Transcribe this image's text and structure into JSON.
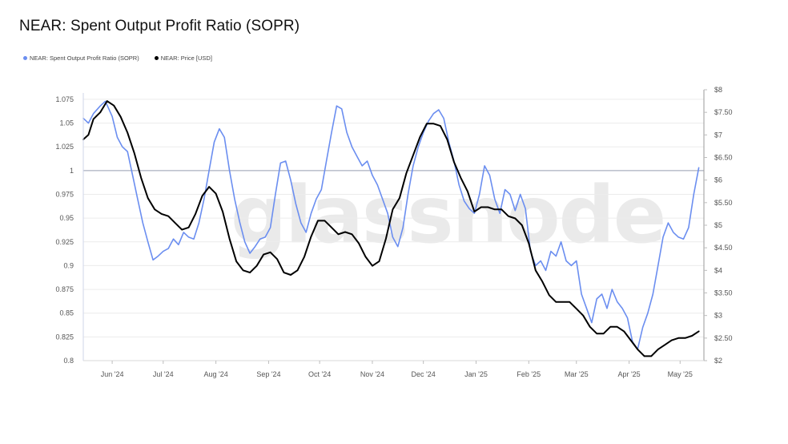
{
  "title": "NEAR: Spent Output Profit Ratio (SOPR)",
  "watermark": "glassnode",
  "legend": [
    {
      "label": "NEAR: Spent Output Profit Ratio (SOPR)",
      "color": "#6b8ef0"
    },
    {
      "label": "NEAR: Price [USD]",
      "color": "#000000"
    }
  ],
  "chart_data": {
    "type": "line",
    "title": "NEAR: Spent Output Profit Ratio (SOPR)",
    "x_tick_labels": [
      "Jun '24",
      "Jul '24",
      "Aug '24",
      "Sep '24",
      "Oct '24",
      "Nov '24",
      "Dec '24",
      "Jan '25",
      "Feb '25",
      "Mar '25",
      "Apr '25",
      "May '25"
    ],
    "x_range": [
      "2024-05-15",
      "2025-05-15"
    ],
    "left_axis": {
      "ticks": [
        "0.8",
        "0.825",
        "0.85",
        "0.875",
        "0.9",
        "0.925",
        "0.95",
        "0.975",
        "1",
        "1.025",
        "1.05",
        "1.075"
      ],
      "ylim": [
        0.8,
        1.08
      ],
      "reference_line": 1
    },
    "right_axis": {
      "ticks": [
        "$2",
        "$2.50",
        "$3",
        "$3.50",
        "$4",
        "$4.50",
        "$5",
        "$5.50",
        "$6",
        "$6.50",
        "$7",
        "$7.50",
        "$8"
      ],
      "ylim": [
        2,
        8
      ]
    },
    "grid": true,
    "legend_position": "top-left",
    "series": [
      {
        "name": "NEAR: Spent Output Profit Ratio (SOPR)",
        "axis": "left",
        "color": "#6b8ef0",
        "points": [
          [
            "2024-05-15",
            1.055
          ],
          [
            "2024-05-18",
            1.05
          ],
          [
            "2024-05-21",
            1.06
          ],
          [
            "2024-05-25",
            1.068
          ],
          [
            "2024-05-28",
            1.073
          ],
          [
            "2024-06-01",
            1.057
          ],
          [
            "2024-06-04",
            1.035
          ],
          [
            "2024-06-07",
            1.025
          ],
          [
            "2024-06-10",
            1.02
          ],
          [
            "2024-06-13",
            0.995
          ],
          [
            "2024-06-16",
            0.97
          ],
          [
            "2024-06-19",
            0.945
          ],
          [
            "2024-06-22",
            0.925
          ],
          [
            "2024-06-25",
            0.906
          ],
          [
            "2024-06-28",
            0.91
          ],
          [
            "2024-07-01",
            0.915
          ],
          [
            "2024-07-04",
            0.918
          ],
          [
            "2024-07-07",
            0.928
          ],
          [
            "2024-07-10",
            0.922
          ],
          [
            "2024-07-13",
            0.935
          ],
          [
            "2024-07-16",
            0.93
          ],
          [
            "2024-07-19",
            0.928
          ],
          [
            "2024-07-22",
            0.945
          ],
          [
            "2024-07-25",
            0.97
          ],
          [
            "2024-07-28",
            1.0
          ],
          [
            "2024-07-31",
            1.03
          ],
          [
            "2024-08-03",
            1.044
          ],
          [
            "2024-08-06",
            1.035
          ],
          [
            "2024-08-09",
            1.0
          ],
          [
            "2024-08-12",
            0.97
          ],
          [
            "2024-08-15",
            0.946
          ],
          [
            "2024-08-18",
            0.925
          ],
          [
            "2024-08-21",
            0.913
          ],
          [
            "2024-08-24",
            0.92
          ],
          [
            "2024-08-27",
            0.928
          ],
          [
            "2024-08-30",
            0.93
          ],
          [
            "2024-09-02",
            0.94
          ],
          [
            "2024-09-05",
            0.975
          ],
          [
            "2024-09-08",
            1.008
          ],
          [
            "2024-09-11",
            1.01
          ],
          [
            "2024-09-14",
            0.99
          ],
          [
            "2024-09-17",
            0.965
          ],
          [
            "2024-09-20",
            0.945
          ],
          [
            "2024-09-23",
            0.935
          ],
          [
            "2024-09-26",
            0.955
          ],
          [
            "2024-09-29",
            0.97
          ],
          [
            "2024-10-02",
            0.98
          ],
          [
            "2024-10-05",
            1.01
          ],
          [
            "2024-10-08",
            1.04
          ],
          [
            "2024-10-11",
            1.068
          ],
          [
            "2024-10-14",
            1.065
          ],
          [
            "2024-10-17",
            1.04
          ],
          [
            "2024-10-20",
            1.025
          ],
          [
            "2024-10-23",
            1.015
          ],
          [
            "2024-10-26",
            1.005
          ],
          [
            "2024-10-29",
            1.01
          ],
          [
            "2024-11-01",
            0.995
          ],
          [
            "2024-11-04",
            0.985
          ],
          [
            "2024-11-07",
            0.97
          ],
          [
            "2024-11-10",
            0.955
          ],
          [
            "2024-11-13",
            0.93
          ],
          [
            "2024-11-16",
            0.92
          ],
          [
            "2024-11-19",
            0.94
          ],
          [
            "2024-11-22",
            0.975
          ],
          [
            "2024-11-25",
            1.005
          ],
          [
            "2024-11-28",
            1.025
          ],
          [
            "2024-12-01",
            1.04
          ],
          [
            "2024-12-04",
            1.052
          ],
          [
            "2024-12-07",
            1.06
          ],
          [
            "2024-12-10",
            1.064
          ],
          [
            "2024-12-13",
            1.055
          ],
          [
            "2024-12-16",
            1.03
          ],
          [
            "2024-12-19",
            1.01
          ],
          [
            "2024-12-22",
            0.985
          ],
          [
            "2024-12-25",
            0.968
          ],
          [
            "2024-12-28",
            0.96
          ],
          [
            "2024-12-31",
            0.955
          ],
          [
            "2025-01-03",
            0.975
          ],
          [
            "2025-01-06",
            1.005
          ],
          [
            "2025-01-09",
            0.995
          ],
          [
            "2025-01-12",
            0.97
          ],
          [
            "2025-01-15",
            0.955
          ],
          [
            "2025-01-18",
            0.98
          ],
          [
            "2025-01-21",
            0.975
          ],
          [
            "2025-01-24",
            0.958
          ],
          [
            "2025-01-27",
            0.975
          ],
          [
            "2025-01-30",
            0.96
          ],
          [
            "2025-02-02",
            0.915
          ],
          [
            "2025-02-05",
            0.9
          ],
          [
            "2025-02-08",
            0.905
          ],
          [
            "2025-02-11",
            0.895
          ],
          [
            "2025-02-14",
            0.915
          ],
          [
            "2025-02-17",
            0.91
          ],
          [
            "2025-02-20",
            0.925
          ],
          [
            "2025-02-23",
            0.905
          ],
          [
            "2025-02-26",
            0.9
          ],
          [
            "2025-03-01",
            0.905
          ],
          [
            "2025-03-04",
            0.87
          ],
          [
            "2025-03-07",
            0.855
          ],
          [
            "2025-03-10",
            0.84
          ],
          [
            "2025-03-13",
            0.865
          ],
          [
            "2025-03-16",
            0.87
          ],
          [
            "2025-03-19",
            0.855
          ],
          [
            "2025-03-22",
            0.875
          ],
          [
            "2025-03-25",
            0.862
          ],
          [
            "2025-03-28",
            0.855
          ],
          [
            "2025-03-31",
            0.845
          ],
          [
            "2025-04-03",
            0.82
          ],
          [
            "2025-04-06",
            0.812
          ],
          [
            "2025-04-09",
            0.835
          ],
          [
            "2025-04-12",
            0.85
          ],
          [
            "2025-04-15",
            0.87
          ],
          [
            "2025-04-18",
            0.9
          ],
          [
            "2025-04-21",
            0.93
          ],
          [
            "2025-04-24",
            0.945
          ],
          [
            "2025-04-27",
            0.935
          ],
          [
            "2025-04-30",
            0.93
          ],
          [
            "2025-05-03",
            0.928
          ],
          [
            "2025-05-06",
            0.94
          ],
          [
            "2025-05-09",
            0.975
          ],
          [
            "2025-05-12",
            1.003
          ]
        ]
      },
      {
        "name": "NEAR: Price [USD]",
        "axis": "right",
        "color": "#000000",
        "points": [
          [
            "2024-05-15",
            6.9
          ],
          [
            "2024-05-18",
            7.0
          ],
          [
            "2024-05-21",
            7.35
          ],
          [
            "2024-05-25",
            7.5
          ],
          [
            "2024-05-29",
            7.75
          ],
          [
            "2024-06-02",
            7.65
          ],
          [
            "2024-06-06",
            7.4
          ],
          [
            "2024-06-10",
            7.05
          ],
          [
            "2024-06-14",
            6.6
          ],
          [
            "2024-06-18",
            6.05
          ],
          [
            "2024-06-22",
            5.6
          ],
          [
            "2024-06-26",
            5.35
          ],
          [
            "2024-06-30",
            5.25
          ],
          [
            "2024-07-04",
            5.2
          ],
          [
            "2024-07-08",
            5.05
          ],
          [
            "2024-07-12",
            4.9
          ],
          [
            "2024-07-16",
            4.95
          ],
          [
            "2024-07-20",
            5.25
          ],
          [
            "2024-07-24",
            5.65
          ],
          [
            "2024-07-28",
            5.85
          ],
          [
            "2024-08-01",
            5.7
          ],
          [
            "2024-08-05",
            5.3
          ],
          [
            "2024-08-09",
            4.7
          ],
          [
            "2024-08-13",
            4.2
          ],
          [
            "2024-08-17",
            4.0
          ],
          [
            "2024-08-21",
            3.95
          ],
          [
            "2024-08-25",
            4.1
          ],
          [
            "2024-08-29",
            4.35
          ],
          [
            "2024-09-02",
            4.4
          ],
          [
            "2024-09-06",
            4.25
          ],
          [
            "2024-09-10",
            3.95
          ],
          [
            "2024-09-14",
            3.9
          ],
          [
            "2024-09-18",
            4.0
          ],
          [
            "2024-09-22",
            4.3
          ],
          [
            "2024-09-26",
            4.75
          ],
          [
            "2024-09-30",
            5.1
          ],
          [
            "2024-10-04",
            5.1
          ],
          [
            "2024-10-08",
            4.95
          ],
          [
            "2024-10-12",
            4.8
          ],
          [
            "2024-10-16",
            4.85
          ],
          [
            "2024-10-20",
            4.8
          ],
          [
            "2024-10-24",
            4.6
          ],
          [
            "2024-10-28",
            4.3
          ],
          [
            "2024-11-01",
            4.1
          ],
          [
            "2024-11-05",
            4.2
          ],
          [
            "2024-11-09",
            4.7
          ],
          [
            "2024-11-13",
            5.35
          ],
          [
            "2024-11-17",
            5.6
          ],
          [
            "2024-11-21",
            6.15
          ],
          [
            "2024-11-25",
            6.55
          ],
          [
            "2024-11-29",
            6.95
          ],
          [
            "2024-12-03",
            7.25
          ],
          [
            "2024-12-07",
            7.25
          ],
          [
            "2024-12-11",
            7.2
          ],
          [
            "2024-12-15",
            6.9
          ],
          [
            "2024-12-19",
            6.4
          ],
          [
            "2024-12-23",
            6.05
          ],
          [
            "2024-12-27",
            5.75
          ],
          [
            "2024-12-31",
            5.3
          ],
          [
            "2025-01-04",
            5.4
          ],
          [
            "2025-01-08",
            5.4
          ],
          [
            "2025-01-12",
            5.35
          ],
          [
            "2025-01-16",
            5.35
          ],
          [
            "2025-01-20",
            5.2
          ],
          [
            "2025-01-24",
            5.15
          ],
          [
            "2025-01-28",
            5.0
          ],
          [
            "2025-02-01",
            4.6
          ],
          [
            "2025-02-05",
            4.0
          ],
          [
            "2025-02-09",
            3.75
          ],
          [
            "2025-02-13",
            3.45
          ],
          [
            "2025-02-17",
            3.3
          ],
          [
            "2025-02-21",
            3.3
          ],
          [
            "2025-02-25",
            3.3
          ],
          [
            "2025-03-01",
            3.15
          ],
          [
            "2025-03-05",
            3.0
          ],
          [
            "2025-03-09",
            2.75
          ],
          [
            "2025-03-13",
            2.6
          ],
          [
            "2025-03-17",
            2.6
          ],
          [
            "2025-03-21",
            2.75
          ],
          [
            "2025-03-25",
            2.75
          ],
          [
            "2025-03-29",
            2.65
          ],
          [
            "2025-04-02",
            2.45
          ],
          [
            "2025-04-06",
            2.25
          ],
          [
            "2025-04-10",
            2.1
          ],
          [
            "2025-04-14",
            2.1
          ],
          [
            "2025-04-18",
            2.25
          ],
          [
            "2025-04-22",
            2.35
          ],
          [
            "2025-04-26",
            2.45
          ],
          [
            "2025-04-30",
            2.5
          ],
          [
            "2025-05-04",
            2.5
          ],
          [
            "2025-05-08",
            2.55
          ],
          [
            "2025-05-12",
            2.65
          ]
        ]
      }
    ]
  }
}
